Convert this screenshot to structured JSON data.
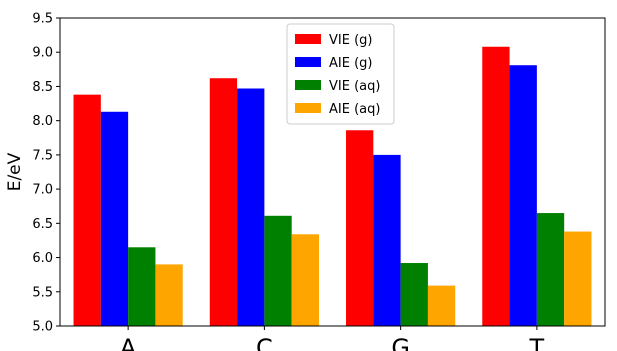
{
  "chart_data": {
    "type": "bar",
    "title": "",
    "xlabel": "",
    "ylabel": "E/eV",
    "categories": [
      "A",
      "C",
      "G",
      "T"
    ],
    "ylim": [
      5.0,
      9.5
    ],
    "yticks": [
      "5.0",
      "5.5",
      "6.0",
      "6.5",
      "7.0",
      "7.5",
      "8.0",
      "8.5",
      "9.0",
      "9.5"
    ],
    "grid": false,
    "legend_position": "top-center",
    "series": [
      {
        "name": "VIE (g)",
        "color": "#ff0000",
        "values": [
          8.38,
          8.62,
          7.86,
          9.08
        ]
      },
      {
        "name": "AIE (g)",
        "color": "#0000ff",
        "values": [
          8.13,
          8.47,
          7.5,
          8.81
        ]
      },
      {
        "name": "VIE (aq)",
        "color": "#008000",
        "values": [
          6.15,
          6.61,
          5.92,
          6.65
        ]
      },
      {
        "name": "AIE (aq)",
        "color": "#ffa500",
        "values": [
          5.9,
          6.34,
          5.59,
          6.38
        ]
      }
    ]
  }
}
